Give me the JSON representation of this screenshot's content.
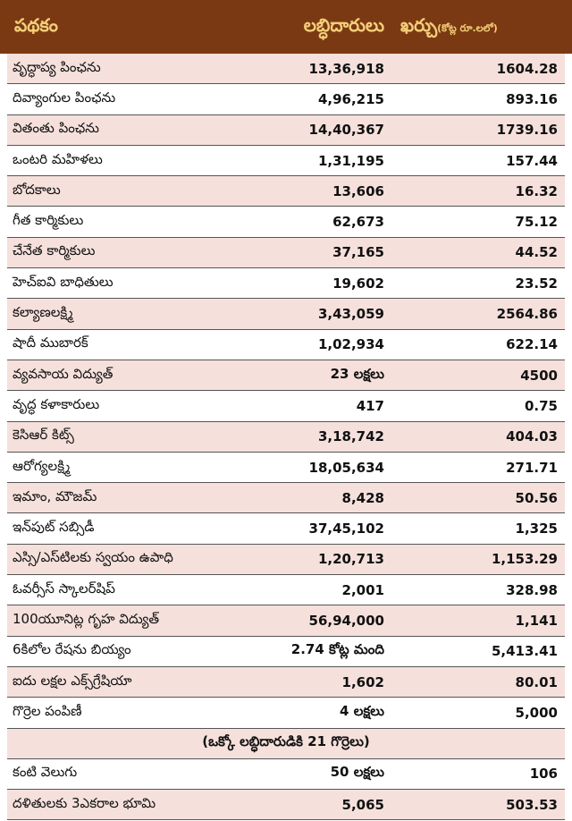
{
  "table": {
    "header": {
      "scheme": "పథకం",
      "beneficiaries": "లబ్ధిదారులు",
      "cost": "ఖర్చు",
      "cost_unit": "(కోట్ల రూ.లలో)"
    },
    "rows": [
      [
        "వృద్ధాప్య పింఛను",
        "13,36,918",
        "1604.28"
      ],
      [
        "దివ్యాంగుల పింఛను",
        "4,96,215",
        "893.16"
      ],
      [
        "వితంతు పింఛను",
        "14,40,367",
        "1739.16"
      ],
      [
        "ఒంటరి మహిళలు",
        "1,31,195",
        "157.44"
      ],
      [
        "బోదకాలు",
        "13,606",
        "16.32"
      ],
      [
        "గీత కార్మికులు",
        "62,673",
        "75.12"
      ],
      [
        "చేనేత కార్మికులు",
        "37,165",
        "44.52"
      ],
      [
        "హెచ్ఐవి బాధితులు",
        "19,602",
        "23.52"
      ],
      [
        "కల్యాణలక్ష్మి",
        "3,43,059",
        "2564.86"
      ],
      [
        "షాదీ ముబారక్",
        "1,02,934",
        "622.14"
      ],
      [
        "వ్యవసాయ విద్యుత్",
        "23 లక్షలు",
        "4500"
      ],
      [
        "వృద్ధ కళాకారులు",
        "417",
        "0.75"
      ],
      [
        "కెసిఆర్ కిట్స్",
        "3,18,742",
        "404.03"
      ],
      [
        "ఆరోగ్యలక్ష్మి",
        "18,05,634",
        "271.71"
      ],
      [
        "ఇమాం, మౌజమ్",
        "8,428",
        "50.56"
      ],
      [
        "ఇన్‌పుట్ సబ్సిడీ",
        "37,45,102",
        "1,325"
      ],
      [
        "ఎస్సి/ఎస్‌టిలకు స్వయం ఉపాధి",
        "1,20,713",
        "1,153.29"
      ],
      [
        "ఓవర్సీస్ స్కాలర్‌షిప్",
        "2,001",
        "328.98"
      ],
      [
        "100యూనిట్ల గృహ విద్యుత్",
        "56,94,000",
        "1,141"
      ],
      [
        "6కిలోల రేషను బియ్యం",
        "2.74 కోట్ల మంది",
        "5,413.41"
      ],
      [
        "ఐదు లక్షల ఎక్స్‌గ్రేషియా",
        "1,602",
        "80.01"
      ],
      [
        "గొర్రెల పంపిణీ",
        "4 లక్షలు",
        "5,000"
      ]
    ],
    "note": "(ఒక్కో లబ్ధిదారుడికి 21 గొర్రెలు)",
    "more_rows": [
      [
        "కంటి వెలుగు",
        "50 లక్షలు",
        "106"
      ],
      [
        "దళితులకు 3ఎకరాల భూమి",
        "5,065",
        "503.53"
      ]
    ]
  }
}
